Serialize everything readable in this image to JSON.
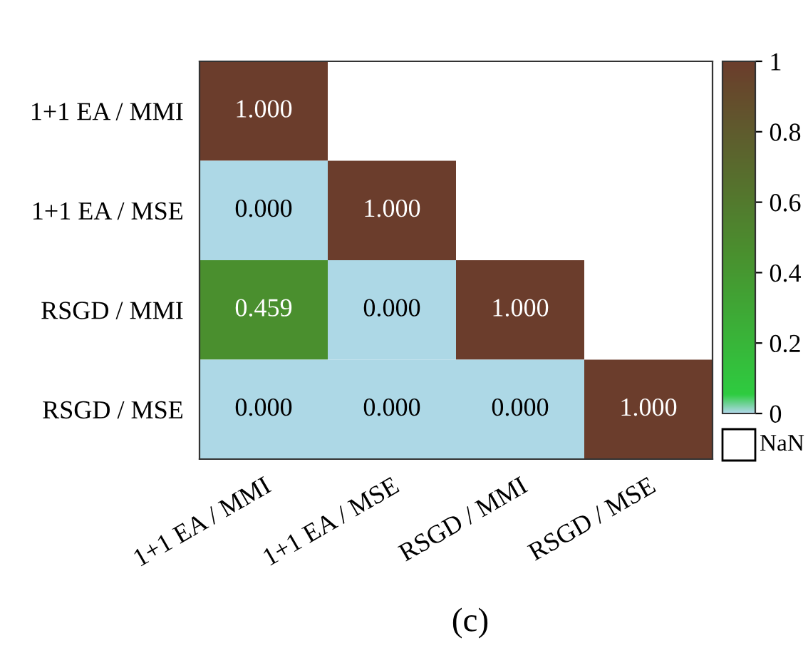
{
  "chart_data": {
    "type": "heatmap",
    "categories": [
      "1+1 EA / MMI",
      "1+1 EA / MSE",
      "RSGD / MMI",
      "RSGD / MSE"
    ],
    "y_categories": [
      "1+1 EA / MMI",
      "1+1 EA / MSE",
      "RSGD / MMI",
      "RSGD / MSE"
    ],
    "cells": [
      [
        1,
        null,
        null,
        null
      ],
      [
        0,
        1,
        null,
        null
      ],
      [
        0.459,
        0,
        1,
        null
      ],
      [
        0,
        0,
        0,
        1
      ]
    ],
    "cell_labels": [
      [
        "1.000",
        null,
        null,
        null
      ],
      [
        "0.000",
        "1.000",
        null,
        null
      ],
      [
        "0.459",
        "0.000",
        "1.000",
        null
      ],
      [
        "0.000",
        "0.000",
        "0.000",
        "1.000"
      ]
    ],
    "clim": [
      0,
      1
    ],
    "cticks": [
      0,
      0.2,
      0.4,
      0.6,
      0.8,
      1
    ],
    "annotations": [
      "NaN",
      "(c)"
    ]
  }
}
